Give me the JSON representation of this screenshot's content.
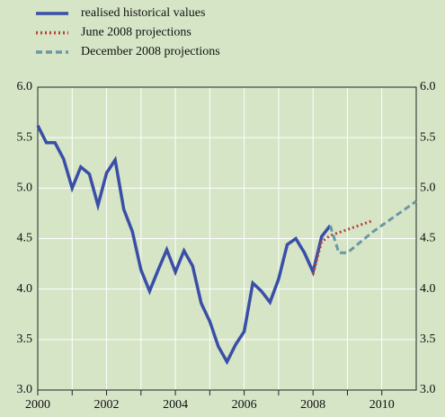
{
  "chart_data": {
    "type": "line",
    "series": [
      {
        "name": "realised historical values",
        "color": "#3a4ea8",
        "style": "solid",
        "x": [
          2000,
          2000.25,
          2000.5,
          2000.75,
          2001,
          2001.25,
          2001.5,
          2001.75,
          2002,
          2002.25,
          2002.5,
          2002.75,
          2003,
          2003.25,
          2003.5,
          2003.75,
          2004,
          2004.25,
          2004.5,
          2004.75,
          2005,
          2005.25,
          2005.5,
          2005.75,
          2006,
          2006.25,
          2006.5,
          2006.75,
          2007,
          2007.25,
          2007.5,
          2007.75,
          2008,
          2008.25,
          2008.5
        ],
        "values": [
          5.62,
          5.45,
          5.45,
          5.29,
          5.0,
          5.21,
          5.14,
          4.83,
          5.15,
          5.28,
          4.79,
          4.57,
          4.19,
          3.98,
          4.19,
          4.39,
          4.17,
          4.38,
          4.23,
          3.86,
          3.68,
          3.43,
          3.28,
          3.45,
          3.58,
          4.06,
          3.98,
          3.87,
          4.1,
          4.44,
          4.5,
          4.36,
          4.17,
          4.52,
          4.63
        ]
      },
      {
        "name": "June 2008 projections",
        "color": "#b8433a",
        "style": "dotted",
        "x": [
          2008,
          2008.25,
          2008.5,
          2008.75,
          2009,
          2009.25,
          2009.5,
          2009.75
        ],
        "values": [
          4.15,
          4.47,
          4.53,
          4.56,
          4.59,
          4.62,
          4.65,
          4.68
        ]
      },
      {
        "name": "December 2008 projections",
        "color": "#6a97a6",
        "style": "dashed",
        "x": [
          2008.5,
          2008.75,
          2009,
          2009.25,
          2009.5,
          2009.75,
          2010,
          2010.25,
          2010.5,
          2010.75,
          2011
        ],
        "values": [
          4.63,
          4.36,
          4.36,
          4.43,
          4.5,
          4.57,
          4.63,
          4.69,
          4.75,
          4.81,
          4.87
        ]
      }
    ],
    "xlim": [
      2000,
      2011
    ],
    "xticks": [
      2000,
      2002,
      2004,
      2006,
      2008,
      2010
    ],
    "xminor_ticks": [
      2001,
      2003,
      2005,
      2007,
      2009
    ],
    "ylim": [
      3.0,
      6.0
    ],
    "yticks": [
      {
        "value": 3,
        "label": "3.0"
      },
      3.5,
      {
        "value": 4,
        "label": "4.0"
      },
      4.5,
      {
        "value": 5,
        "label": "5.0"
      },
      5.5,
      {
        "value": 6,
        "label": "6.0"
      }
    ],
    "grid": true
  }
}
